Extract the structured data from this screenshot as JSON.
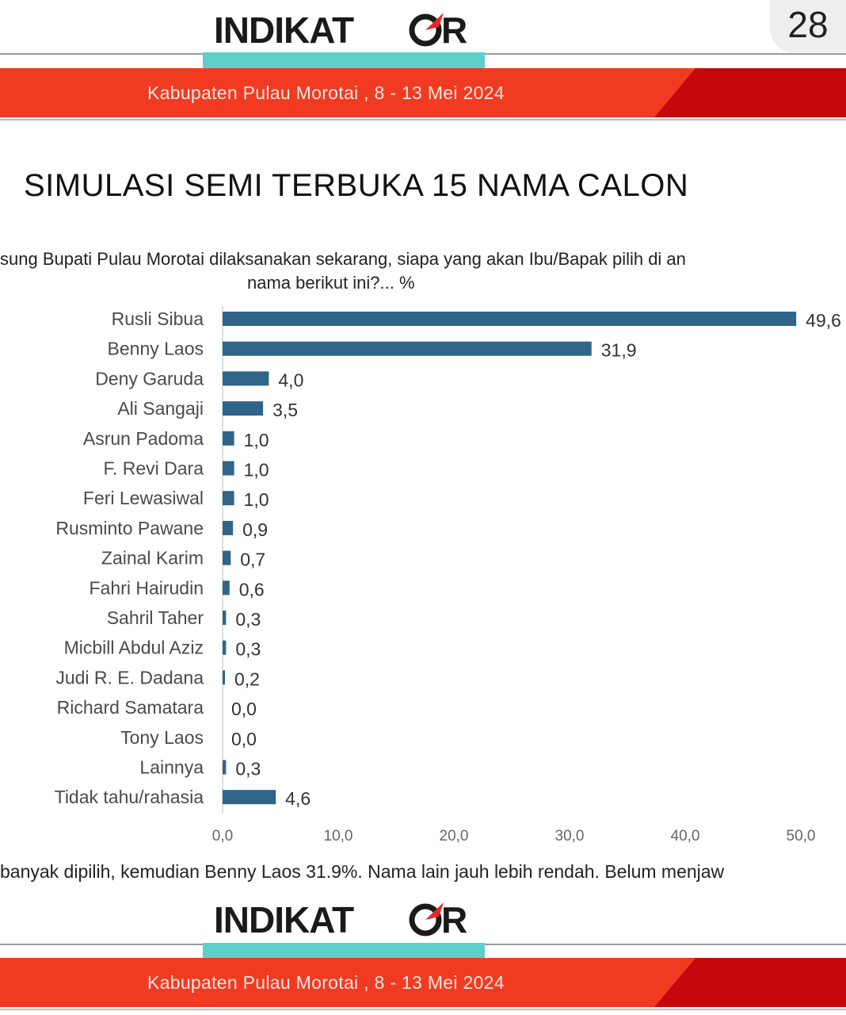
{
  "header": {
    "logo_text": "INDIKAT●R",
    "page_number": "28",
    "band_text": "Kabupaten Pulau Morotai , 8 - 13 Mei 2024"
  },
  "title": "SIMULASI SEMI TERBUKA 15 NAMA CALON",
  "question": {
    "line1": "sung Bupati Pulau Morotai dilaksanakan sekarang, siapa yang akan Ibu/Bapak pilih di an",
    "line2": "nama berikut ini?... %"
  },
  "footnote": "banyak dipilih, kemudian Benny Laos 31.9%. Nama lain jauh lebih rendah. Belum menjaw",
  "footer": {
    "logo_text": "INDIKAT●R",
    "band_text": "Kabupaten Pulau Morotai , 8 - 13 Mei 2024"
  },
  "colors": {
    "bar": "#2f6588",
    "band_red": "#f03b22",
    "band_dark_red": "#c5080c",
    "teal": "#5fcfcc",
    "logo_accent": "#e8262a"
  },
  "chart_data": {
    "type": "bar",
    "orientation": "horizontal",
    "categories": [
      "Rusli Sibua",
      "Benny Laos",
      "Deny Garuda",
      "Ali Sangaji",
      "Asrun Padoma",
      "F. Revi Dara",
      "Feri Lewasiwal",
      "Rusminto Pawane",
      "Zainal Karim",
      "Fahri Hairudin",
      "Sahril Taher",
      "Micbill Abdul Aziz",
      "Judi R. E. Dadana",
      "Richard Samatara",
      "Tony Laos",
      "Lainnya",
      "Tidak tahu/rahasia"
    ],
    "values": [
      49.6,
      31.9,
      4.0,
      3.5,
      1.0,
      1.0,
      1.0,
      0.9,
      0.7,
      0.6,
      0.3,
      0.3,
      0.2,
      0.0,
      0.0,
      0.3,
      4.6
    ],
    "value_labels": [
      "49,6",
      "31,9",
      "4,0",
      "3,5",
      "1,0",
      "1,0",
      "1,0",
      "0,9",
      "0,7",
      "0,6",
      "0,3",
      "0,3",
      "0,2",
      "0,0",
      "0,0",
      "0,3",
      "4,6"
    ],
    "xlim": [
      0,
      50
    ],
    "xticks": [
      "0,0",
      "10,0",
      "20,0",
      "30,0",
      "40,0",
      "50,0"
    ],
    "grid": false,
    "legend": "none"
  }
}
